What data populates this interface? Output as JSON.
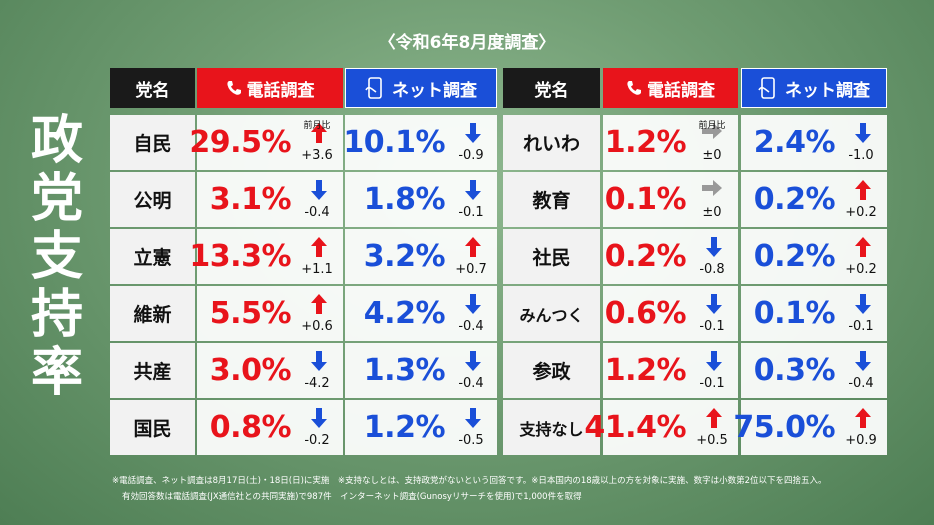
{
  "title": "〈令和6年8月度調査〉",
  "side_title": "政党支持率",
  "headers": {
    "party": "党名",
    "phone": "電話調査",
    "net": "ネット調査"
  },
  "change_label": "前月比",
  "panels": [
    {
      "rows": [
        {
          "party": "自民",
          "phone": "29.5%",
          "phone_change": "+3.6",
          "net": "10.1%",
          "net_change": "-0.9"
        },
        {
          "party": "公明",
          "phone": "3.1%",
          "phone_change": "-0.4",
          "net": "1.8%",
          "net_change": "-0.1"
        },
        {
          "party": "立憲",
          "phone": "13.3%",
          "phone_change": "+1.1",
          "net": "3.2%",
          "net_change": "+0.7"
        },
        {
          "party": "維新",
          "phone": "5.5%",
          "phone_change": "+0.6",
          "net": "4.2%",
          "net_change": "-0.4"
        },
        {
          "party": "共産",
          "phone": "3.0%",
          "phone_change": "-4.2",
          "net": "1.3%",
          "net_change": "-0.4"
        },
        {
          "party": "国民",
          "phone": "0.8%",
          "phone_change": "-0.2",
          "net": "1.2%",
          "net_change": "-0.5"
        }
      ]
    },
    {
      "rows": [
        {
          "party": "れいわ",
          "phone": "1.2%",
          "phone_change": "±0",
          "net": "2.4%",
          "net_change": "-1.0"
        },
        {
          "party": "教育",
          "phone": "0.1%",
          "phone_change": "±0",
          "net": "0.2%",
          "net_change": "+0.2"
        },
        {
          "party": "社民",
          "phone": "0.2%",
          "phone_change": "-0.8",
          "net": "0.2%",
          "net_change": "+0.2"
        },
        {
          "party": "みんつく",
          "phone": "0.6%",
          "phone_change": "-0.1",
          "net": "0.1%",
          "net_change": "-0.1"
        },
        {
          "party": "参政",
          "phone": "1.2%",
          "phone_change": "-0.1",
          "net": "0.3%",
          "net_change": "-0.4"
        },
        {
          "party": "支持なし",
          "phone": "41.4%",
          "phone_change": "+0.5",
          "net": "75.0%",
          "net_change": "+0.9"
        }
      ]
    }
  ],
  "footnotes": [
    "※電話調査、ネット調査は8月17日(土)・18日(日)に実施　※支持なしとは、支持政党がないという回答です。※日本国内の18歳以上の方を対象に実施、数字は小数第2位以下を四捨五入。",
    "有効回答数は電話調査(JX通信社との共同実施)で987件　インターネット調査(Gunosyリサーチを使用)で1,000件を取得"
  ]
}
